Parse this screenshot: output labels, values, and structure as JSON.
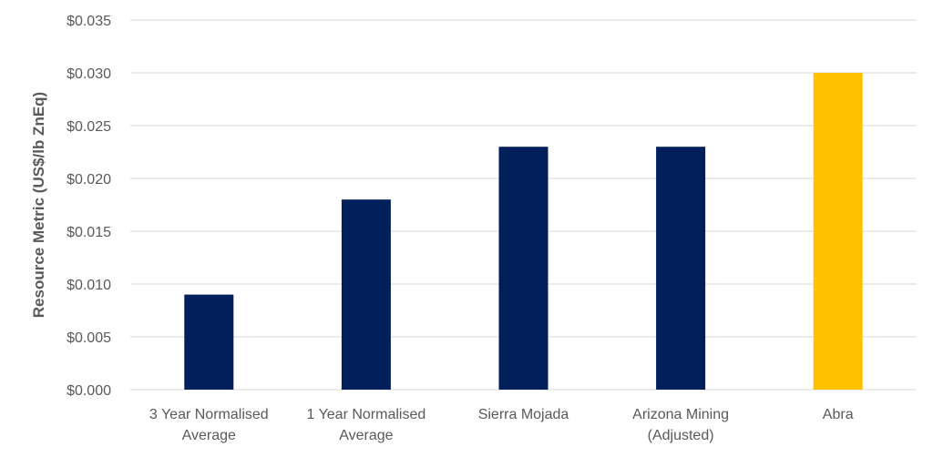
{
  "chart_data": {
    "type": "bar",
    "title": "",
    "xlabel": "",
    "ylabel": "Resource Metric (US$/lb ZnEq)",
    "categories": [
      [
        "3 Year Normalised",
        "Average"
      ],
      [
        "1 Year Normalised",
        "Average"
      ],
      [
        "Sierra Mojada"
      ],
      [
        "Arizona Mining",
        "(Adjusted)"
      ],
      [
        "Abra"
      ]
    ],
    "values": [
      0.009,
      0.018,
      0.023,
      0.023,
      0.03
    ],
    "bar_colors": [
      "#001F5B",
      "#001F5B",
      "#001F5B",
      "#001F5B",
      "#FFC000"
    ],
    "ylim": [
      0,
      0.035
    ],
    "yticks": [
      0,
      0.005,
      0.01,
      0.015,
      0.02,
      0.025,
      0.03,
      0.035
    ],
    "ytick_labels": [
      "$0.000",
      "$0.005",
      "$0.010",
      "$0.015",
      "$0.020",
      "$0.025",
      "$0.030",
      "$0.035"
    ],
    "grid": true,
    "legend": "none"
  }
}
